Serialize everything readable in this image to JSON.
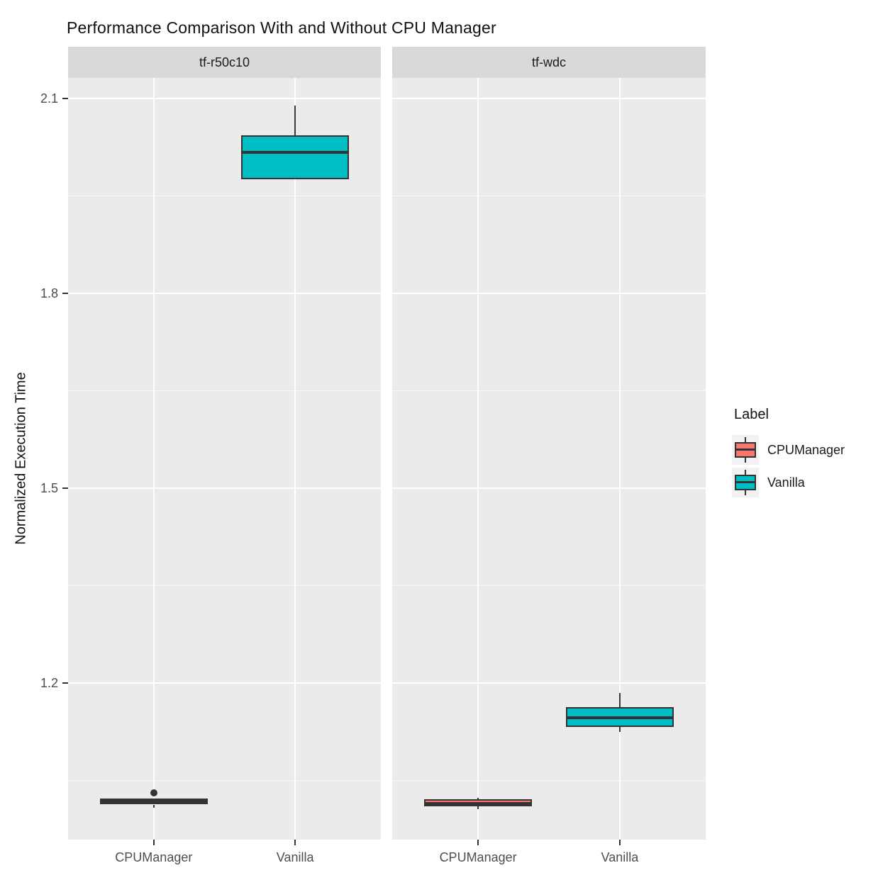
{
  "chart_data": {
    "type": "boxplot",
    "title": "Performance Comparison With and Without CPU Manager",
    "ylabel": "Normalized Execution Time",
    "xlabel": "",
    "y_ticks": [
      2.1,
      1.8,
      1.5,
      1.2
    ],
    "y_minor_ticks": [
      1.95,
      1.65,
      1.35,
      1.05
    ],
    "ylim": [
      0.959,
      2.132
    ],
    "categories": [
      "CPUManager",
      "Vanilla"
    ],
    "grid": "on",
    "legend_position": "right",
    "legend": {
      "title": "Label",
      "entries": [
        {
          "label": "CPUManager",
          "color": "#F8766D"
        },
        {
          "label": "Vanilla",
          "color": "#00BFC4"
        }
      ]
    },
    "facets": [
      {
        "label": "tf-r50c10",
        "boxes": [
          {
            "category": "CPUManager",
            "group": "CPUManager",
            "color": "#F8766D",
            "whisker_low": 1.008,
            "q1": 1.013,
            "median": 1.018,
            "q3": 1.022,
            "whisker_high": 1.022,
            "outliers": [
              1.031
            ]
          },
          {
            "category": "Vanilla",
            "group": "Vanilla",
            "color": "#00BFC4",
            "whisker_low": 1.976,
            "q1": 1.976,
            "median": 2.017,
            "q3": 2.044,
            "whisker_high": 2.089,
            "outliers": []
          }
        ]
      },
      {
        "label": "tf-wdc",
        "boxes": [
          {
            "category": "CPUManager",
            "group": "CPUManager",
            "color": "#F8766D",
            "whisker_low": 1.006,
            "q1": 1.01,
            "median": 1.015,
            "q3": 1.021,
            "whisker_high": 1.023,
            "outliers": []
          },
          {
            "category": "Vanilla",
            "group": "Vanilla",
            "color": "#00BFC4",
            "whisker_low": 1.125,
            "q1": 1.133,
            "median": 1.147,
            "q3": 1.163,
            "whisker_high": 1.185,
            "outliers": []
          }
        ]
      }
    ]
  },
  "colors": {
    "panel_background": "#EBEBEB",
    "strip_background": "#D9D9D9",
    "legend_key_background": "#F2F2F2",
    "gridline": "#FFFFFF",
    "box_outline": "#333333",
    "tick_label": "#4D4D4D",
    "title_text": "#111111"
  }
}
